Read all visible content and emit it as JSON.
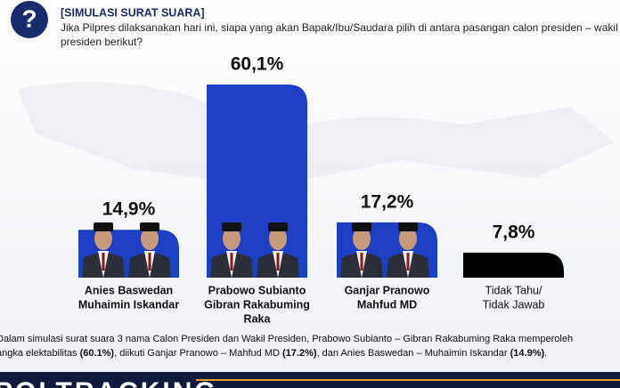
{
  "header": {
    "title": "[SIMULASI SURAT SUARA]",
    "question": [
      "Jika Pilpres dilaksanakan hari ini, siapa yang akan Bapak/Ibu/Saudara pilih di antara pasangan calon presiden – wakil",
      "presiden berikut?"
    ]
  },
  "chart_data": {
    "type": "bar",
    "categories": [
      [
        "Anies Baswedan",
        "Muhaimin Iskandar"
      ],
      [
        "Prabowo Subianto",
        "Gibran Rakabuming",
        "Raka"
      ],
      [
        "Ganjar Pranowo",
        "Mahfud MD"
      ],
      [
        "Tidak Tahu/",
        "Tidak Jawab"
      ]
    ],
    "values": [
      14.9,
      60.1,
      17.2,
      7.8
    ],
    "value_labels": [
      "14,9%",
      "60,1%",
      "17,2%",
      "7,8%"
    ],
    "colors": [
      "#1d3fc4",
      "#1d3fc4",
      "#1d3fc4",
      "#000000"
    ]
  },
  "footnote": [
    "Dalam simulasi surat suara 3 nama Calon Presiden dan Wakil Presiden, Prabowo Subianto – Gibran Rakabuming Raka memperoleh",
    "angka elektabilitas ",
    "(60.1%)",
    ", diikuti Ganjar Pranowo – Mahfud MD ",
    "(17.2%)",
    ", dan Anies Baswedan – Muhaimin Iskandar ",
    "(14.9%)",
    "."
  ],
  "brand": "POLTRACKING"
}
